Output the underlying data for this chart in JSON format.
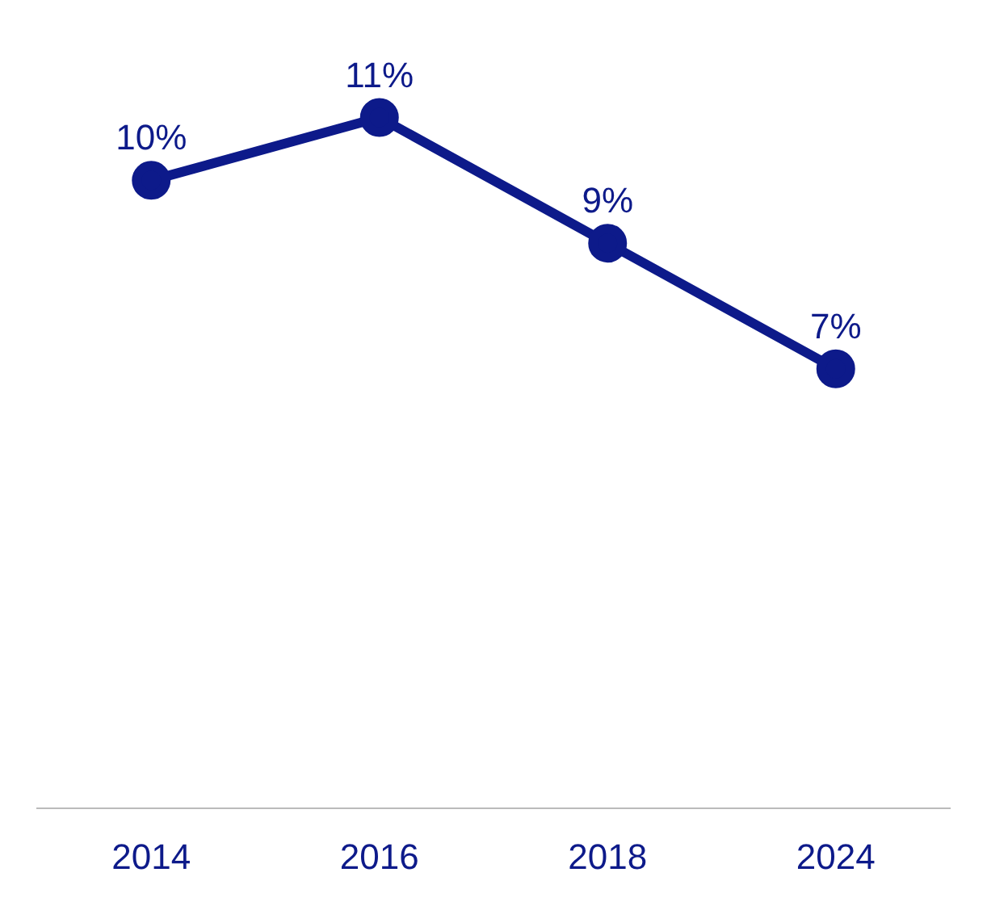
{
  "chart_data": {
    "type": "line",
    "categories": [
      "2014",
      "2016",
      "2018",
      "2024"
    ],
    "series": [
      {
        "color": "#0d1a8a",
        "values": [
          10,
          11,
          9,
          7
        ],
        "value_labels": [
          "10%",
          "11%",
          "9%",
          "7%"
        ]
      }
    ],
    "marker": "circle",
    "grid": false,
    "legend": false,
    "tick_labels": "x"
  }
}
